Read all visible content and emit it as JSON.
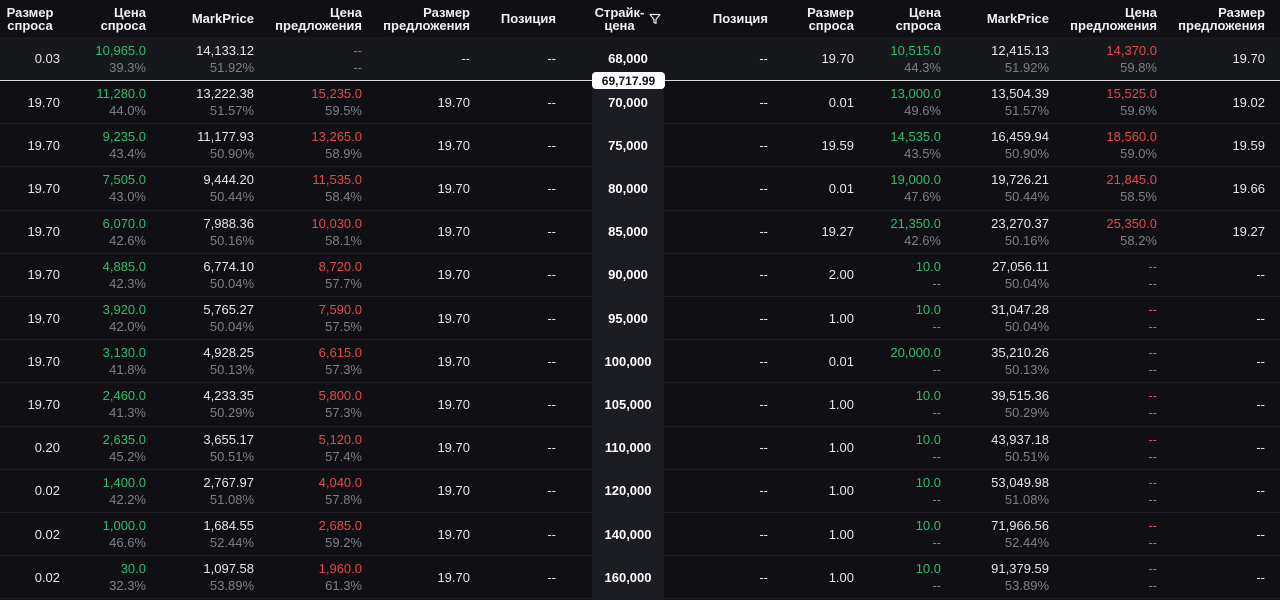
{
  "header": {
    "calls": [
      {
        "l1": "Размер",
        "l2": "спроса"
      },
      {
        "l1": "Цена",
        "l2": "спроса"
      },
      {
        "l1": "MarkPrice",
        "l2": ""
      },
      {
        "l1": "Цена",
        "l2": "предложения"
      },
      {
        "l1": "Размер",
        "l2": "предложения"
      },
      {
        "l1": "Позиция",
        "l2": ""
      }
    ],
    "strike": {
      "l1": "Страйк-",
      "l2": "цена"
    },
    "puts": [
      {
        "l1": "Позиция",
        "l2": ""
      },
      {
        "l1": "Размер",
        "l2": "спроса"
      },
      {
        "l1": "Цена",
        "l2": "спроса"
      },
      {
        "l1": "MarkPrice",
        "l2": ""
      },
      {
        "l1": "Цена",
        "l2": "предложения"
      },
      {
        "l1": "Размер",
        "l2": "предложения"
      }
    ]
  },
  "spot_price": "69,717.99",
  "rows": [
    {
      "strike": "68,000",
      "call": {
        "bid_size": "0.03",
        "bid": "10,965.0",
        "bid_iv": "39.3%",
        "mark": "14,133.12",
        "mark_iv": "51.92%",
        "ask": "--",
        "ask_iv": "--",
        "ask_size": "--",
        "position": "--"
      },
      "put": {
        "position": "--",
        "bid_size": "19.70",
        "bid": "10,515.0",
        "bid_iv": "44.3%",
        "mark": "12,415.13",
        "mark_iv": "51.92%",
        "ask": "14,370.0",
        "ask_iv": "59.8%",
        "ask_size": "19.70"
      }
    },
    {
      "strike": "70,000",
      "call": {
        "bid_size": "19.70",
        "bid": "11,280.0",
        "bid_iv": "44.0%",
        "mark": "13,222.38",
        "mark_iv": "51.57%",
        "ask": "15,235.0",
        "ask_iv": "59.5%",
        "ask_size": "19.70",
        "position": "--"
      },
      "put": {
        "position": "--",
        "bid_size": "0.01",
        "bid": "13,000.0",
        "bid_iv": "49.6%",
        "mark": "13,504.39",
        "mark_iv": "51.57%",
        "ask": "15,525.0",
        "ask_iv": "59.6%",
        "ask_size": "19.02"
      }
    },
    {
      "strike": "75,000",
      "call": {
        "bid_size": "19.70",
        "bid": "9,235.0",
        "bid_iv": "43.4%",
        "mark": "11,177.93",
        "mark_iv": "50.90%",
        "ask": "13,265.0",
        "ask_iv": "58.9%",
        "ask_size": "19.70",
        "position": "--"
      },
      "put": {
        "position": "--",
        "bid_size": "19.59",
        "bid": "14,535.0",
        "bid_iv": "43.5%",
        "mark": "16,459.94",
        "mark_iv": "50.90%",
        "ask": "18,560.0",
        "ask_iv": "59.0%",
        "ask_size": "19.59"
      }
    },
    {
      "strike": "80,000",
      "call": {
        "bid_size": "19.70",
        "bid": "7,505.0",
        "bid_iv": "43.0%",
        "mark": "9,444.20",
        "mark_iv": "50.44%",
        "ask": "11,535.0",
        "ask_iv": "58.4%",
        "ask_size": "19.70",
        "position": "--"
      },
      "put": {
        "position": "--",
        "bid_size": "0.01",
        "bid": "19,000.0",
        "bid_iv": "47.6%",
        "mark": "19,726.21",
        "mark_iv": "50.44%",
        "ask": "21,845.0",
        "ask_iv": "58.5%",
        "ask_size": "19.66"
      }
    },
    {
      "strike": "85,000",
      "call": {
        "bid_size": "19.70",
        "bid": "6,070.0",
        "bid_iv": "42.6%",
        "mark": "7,988.36",
        "mark_iv": "50.16%",
        "ask": "10,030.0",
        "ask_iv": "58.1%",
        "ask_size": "19.70",
        "position": "--"
      },
      "put": {
        "position": "--",
        "bid_size": "19.27",
        "bid": "21,350.0",
        "bid_iv": "42.6%",
        "mark": "23,270.37",
        "mark_iv": "50.16%",
        "ask": "25,350.0",
        "ask_iv": "58.2%",
        "ask_size": "19.27"
      }
    },
    {
      "strike": "90,000",
      "call": {
        "bid_size": "19.70",
        "bid": "4,885.0",
        "bid_iv": "42.3%",
        "mark": "6,774.10",
        "mark_iv": "50.04%",
        "ask": "8,720.0",
        "ask_iv": "57.7%",
        "ask_size": "19.70",
        "position": "--"
      },
      "put": {
        "position": "--",
        "bid_size": "2.00",
        "bid": "10.0",
        "bid_iv": "--",
        "mark": "27,056.11",
        "mark_iv": "50.04%",
        "ask": "--",
        "ask_iv": "--",
        "ask_size": "--"
      }
    },
    {
      "strike": "95,000",
      "call": {
        "bid_size": "19.70",
        "bid": "3,920.0",
        "bid_iv": "42.0%",
        "mark": "5,765.27",
        "mark_iv": "50.04%",
        "ask": "7,590.0",
        "ask_iv": "57.5%",
        "ask_size": "19.70",
        "position": "--"
      },
      "put": {
        "position": "--",
        "bid_size": "1.00",
        "bid": "10.0",
        "bid_iv": "--",
        "mark": "31,047.28",
        "mark_iv": "50.04%",
        "ask": "--",
        "ask_iv": "--",
        "ask_size": "--"
      }
    },
    {
      "strike": "100,000",
      "call": {
        "bid_size": "19.70",
        "bid": "3,130.0",
        "bid_iv": "41.8%",
        "mark": "4,928.25",
        "mark_iv": "50.13%",
        "ask": "6,615.0",
        "ask_iv": "57.3%",
        "ask_size": "19.70",
        "position": "--"
      },
      "put": {
        "position": "--",
        "bid_size": "0.01",
        "bid": "20,000.0",
        "bid_iv": "--",
        "mark": "35,210.26",
        "mark_iv": "50.13%",
        "ask": "--",
        "ask_iv": "--",
        "ask_size": "--"
      }
    },
    {
      "strike": "105,000",
      "call": {
        "bid_size": "19.70",
        "bid": "2,460.0",
        "bid_iv": "41.3%",
        "mark": "4,233.35",
        "mark_iv": "50.29%",
        "ask": "5,800.0",
        "ask_iv": "57.3%",
        "ask_size": "19.70",
        "position": "--"
      },
      "put": {
        "position": "--",
        "bid_size": "1.00",
        "bid": "10.0",
        "bid_iv": "--",
        "mark": "39,515.36",
        "mark_iv": "50.29%",
        "ask": "--",
        "ask_iv": "--",
        "ask_size": "--"
      }
    },
    {
      "strike": "110,000",
      "call": {
        "bid_size": "0.20",
        "bid": "2,635.0",
        "bid_iv": "45.2%",
        "mark": "3,655.17",
        "mark_iv": "50.51%",
        "ask": "5,120.0",
        "ask_iv": "57.4%",
        "ask_size": "19.70",
        "position": "--"
      },
      "put": {
        "position": "--",
        "bid_size": "1.00",
        "bid": "10.0",
        "bid_iv": "--",
        "mark": "43,937.18",
        "mark_iv": "50.51%",
        "ask": "--",
        "ask_iv": "--",
        "ask_size": "--"
      }
    },
    {
      "strike": "120,000",
      "call": {
        "bid_size": "0.02",
        "bid": "1,400.0",
        "bid_iv": "42.2%",
        "mark": "2,767.97",
        "mark_iv": "51.08%",
        "ask": "4,040.0",
        "ask_iv": "57.8%",
        "ask_size": "19.70",
        "position": "--"
      },
      "put": {
        "position": "--",
        "bid_size": "1.00",
        "bid": "10.0",
        "bid_iv": "--",
        "mark": "53,049.98",
        "mark_iv": "51.08%",
        "ask": "--",
        "ask_iv": "--",
        "ask_size": "--"
      }
    },
    {
      "strike": "140,000",
      "call": {
        "bid_size": "0.02",
        "bid": "1,000.0",
        "bid_iv": "46.6%",
        "mark": "1,684.55",
        "mark_iv": "52.44%",
        "ask": "2,685.0",
        "ask_iv": "59.2%",
        "ask_size": "19.70",
        "position": "--"
      },
      "put": {
        "position": "--",
        "bid_size": "1.00",
        "bid": "10.0",
        "bid_iv": "--",
        "mark": "71,966.56",
        "mark_iv": "52.44%",
        "ask": "--",
        "ask_iv": "--",
        "ask_size": "--"
      }
    },
    {
      "strike": "160,000",
      "call": {
        "bid_size": "0.02",
        "bid": "30.0",
        "bid_iv": "32.3%",
        "mark": "1,097.58",
        "mark_iv": "53.89%",
        "ask": "1,960.0",
        "ask_iv": "61.3%",
        "ask_size": "19.70",
        "position": "--"
      },
      "put": {
        "position": "--",
        "bid_size": "1.00",
        "bid": "10.0",
        "bid_iv": "--",
        "mark": "91,379.59",
        "mark_iv": "53.89%",
        "ask": "--",
        "ask_iv": "--",
        "ask_size": "--"
      }
    }
  ],
  "colors": {
    "bid": "#2fbd6b",
    "ask": "#e5484d",
    "muted": "#7d7f87",
    "background": "#101014",
    "strike_column": "#1c1d22"
  },
  "icons": {
    "strike_filter": "filter-icon"
  }
}
